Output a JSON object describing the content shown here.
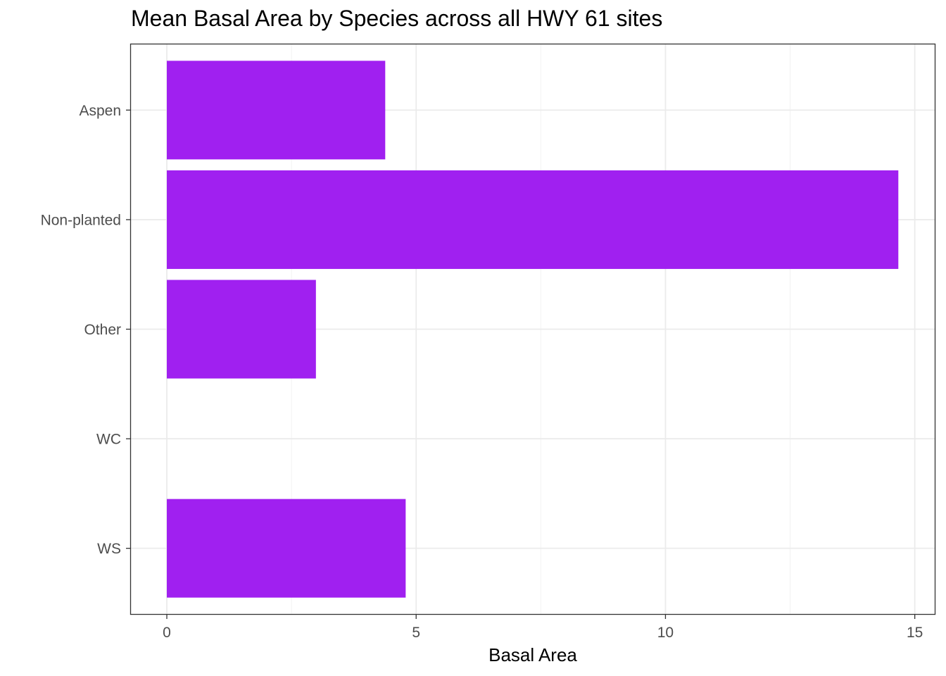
{
  "chart_data": {
    "type": "bar",
    "orientation": "horizontal",
    "title": "Mean Basal Area by Species across all HWY 61 sites",
    "xlabel": "Basal Area",
    "ylabel": "",
    "categories": [
      "Aspen",
      "Non-planted",
      "Other",
      "WC",
      "WS"
    ],
    "values": [
      4.38,
      14.67,
      2.99,
      0,
      4.79
    ],
    "xlim": [
      -0.72,
      15.4
    ],
    "xticks": [
      "0",
      "5",
      "10",
      "15"
    ],
    "grid": true,
    "legend": "none",
    "bar_color": "#A020F0"
  }
}
